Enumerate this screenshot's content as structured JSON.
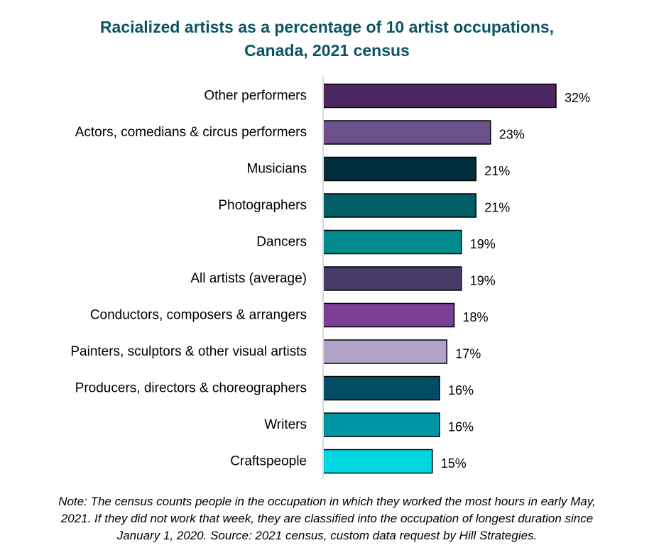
{
  "chart_data": {
    "type": "bar",
    "orientation": "horizontal",
    "title_lines": [
      "Racialized artists as a percentage of 10 artist occupations,",
      "Canada, 2021 census"
    ],
    "categories": [
      "Other performers",
      "Actors, comedians & circus performers",
      "Musicians",
      "Photographers",
      "Dancers",
      "All artists (average)",
      "Conductors, composers & arrangers",
      "Painters, sculptors & other visual artists",
      "Producers, directors & choreographers",
      "Writers",
      "Craftspeople"
    ],
    "values": [
      32,
      23,
      21,
      21,
      19,
      19,
      18,
      17,
      16,
      16,
      15
    ],
    "value_labels": [
      "32%",
      "23%",
      "21%",
      "21%",
      "19%",
      "19%",
      "18%",
      "17%",
      "16%",
      "16%",
      "15%"
    ],
    "bar_colors": [
      "#4a2760",
      "#6b5089",
      "#012e3d",
      "#015d66",
      "#008a8c",
      "#463b6a",
      "#7c3f96",
      "#b1a1c6",
      "#024d63",
      "#0095a4",
      "#00d8e0"
    ],
    "axis_line_color": "#d9d9d9",
    "gridlines": false,
    "legend": "none",
    "xlabel": "",
    "ylabel": "",
    "note_lines": [
      "Note: The census counts people in the occupation in which they worked the most hours in early May,",
      "2021. If they did not work that week, they are classified into the occupation of longest duration since",
      "January 1, 2020. Source: 2021 census, custom data request by Hill Strategies."
    ]
  }
}
